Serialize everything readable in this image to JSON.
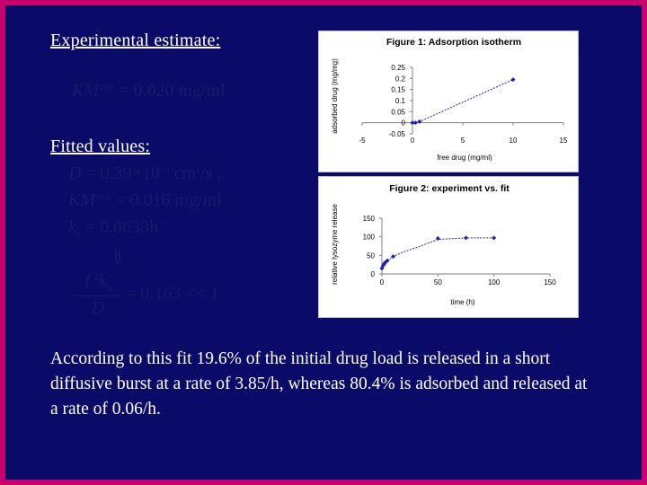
{
  "slide": {
    "heading_experimental": "Experimental estimate:",
    "km_estimate": {
      "lhs": "KM",
      "sup": "max",
      "rhs": " = 0.020 mg/ml"
    },
    "heading_fitted": "Fitted values:",
    "fitted": {
      "d_line": {
        "lhs": "D",
        "rhs": " = 0.39×10",
        "exp": "−6",
        "unit": " cm",
        "unit_exp": "2",
        "tail": "/s ,",
        "font_color": "#1a1a6a"
      },
      "km_line": {
        "lhs": "KM",
        "sup": "max",
        "rhs": " = 0.016 mg/ml"
      },
      "kd_line": {
        "lhs": "k",
        "sub": "d",
        "rhs": " = 0.0633h",
        "exp": "−1"
      },
      "down_arrow": "⇓",
      "ratio_line": {
        "numerator": "L",
        "num_exp": "2",
        "num_tail": "k",
        "num_sub": "d",
        "denominator": "D",
        "rhs": " = 0.163 << 1"
      }
    },
    "conclusion": "According to this fit 19.6% of the initial drug load is released in a short diffusive burst at a rate of 3.85/h, whereas 80.4% is adsorbed and released at a rate of 0.06/h."
  },
  "chart_data": [
    {
      "type": "scatter",
      "title": "Figure 1: Adsorption isotherm",
      "xlabel": "free drug (mg/ml)",
      "ylabel": "adsorbed drug (mg/mg)",
      "xlim": [
        -5,
        15
      ],
      "ylim": [
        -0.05,
        0.25
      ],
      "xticks": [
        "-5",
        "0",
        "5",
        "10",
        "15"
      ],
      "yticks": [
        "-0.05",
        "0",
        "0.05",
        "0.1",
        "0.15",
        "0.2",
        "0.25"
      ],
      "series": [
        {
          "x": [
            0,
            0.3,
            0.7,
            10
          ],
          "y": [
            0,
            0,
            0.005,
            0.195
          ]
        }
      ],
      "grid": false,
      "colors": {
        "series": "#1f1fb4",
        "frame": "#808080"
      }
    },
    {
      "type": "line",
      "title": "Figure 2: experiment vs. fit",
      "xlabel": "time (h)",
      "ylabel": "relative lysozyme release",
      "xlim": [
        0,
        150
      ],
      "ylim": [
        0,
        150
      ],
      "xticks": [
        "0",
        "50",
        "100",
        "150"
      ],
      "yticks": [
        "0",
        "50",
        "100",
        "150"
      ],
      "series": [
        {
          "x": [
            0,
            1,
            2,
            3,
            5,
            10,
            20,
            30,
            50,
            75,
            100
          ],
          "y": [
            15,
            22,
            27,
            31,
            36,
            47,
            60,
            70,
            93,
            97,
            97
          ]
        }
      ],
      "markers": {
        "x": [
          0,
          1,
          2,
          3,
          5,
          10,
          50,
          75,
          100
        ],
        "y": [
          15,
          22,
          27,
          31,
          36,
          47,
          96,
          97,
          97
        ]
      },
      "grid": false,
      "colors": {
        "series": "#1f1fb4",
        "frame": "#808080"
      }
    }
  ]
}
